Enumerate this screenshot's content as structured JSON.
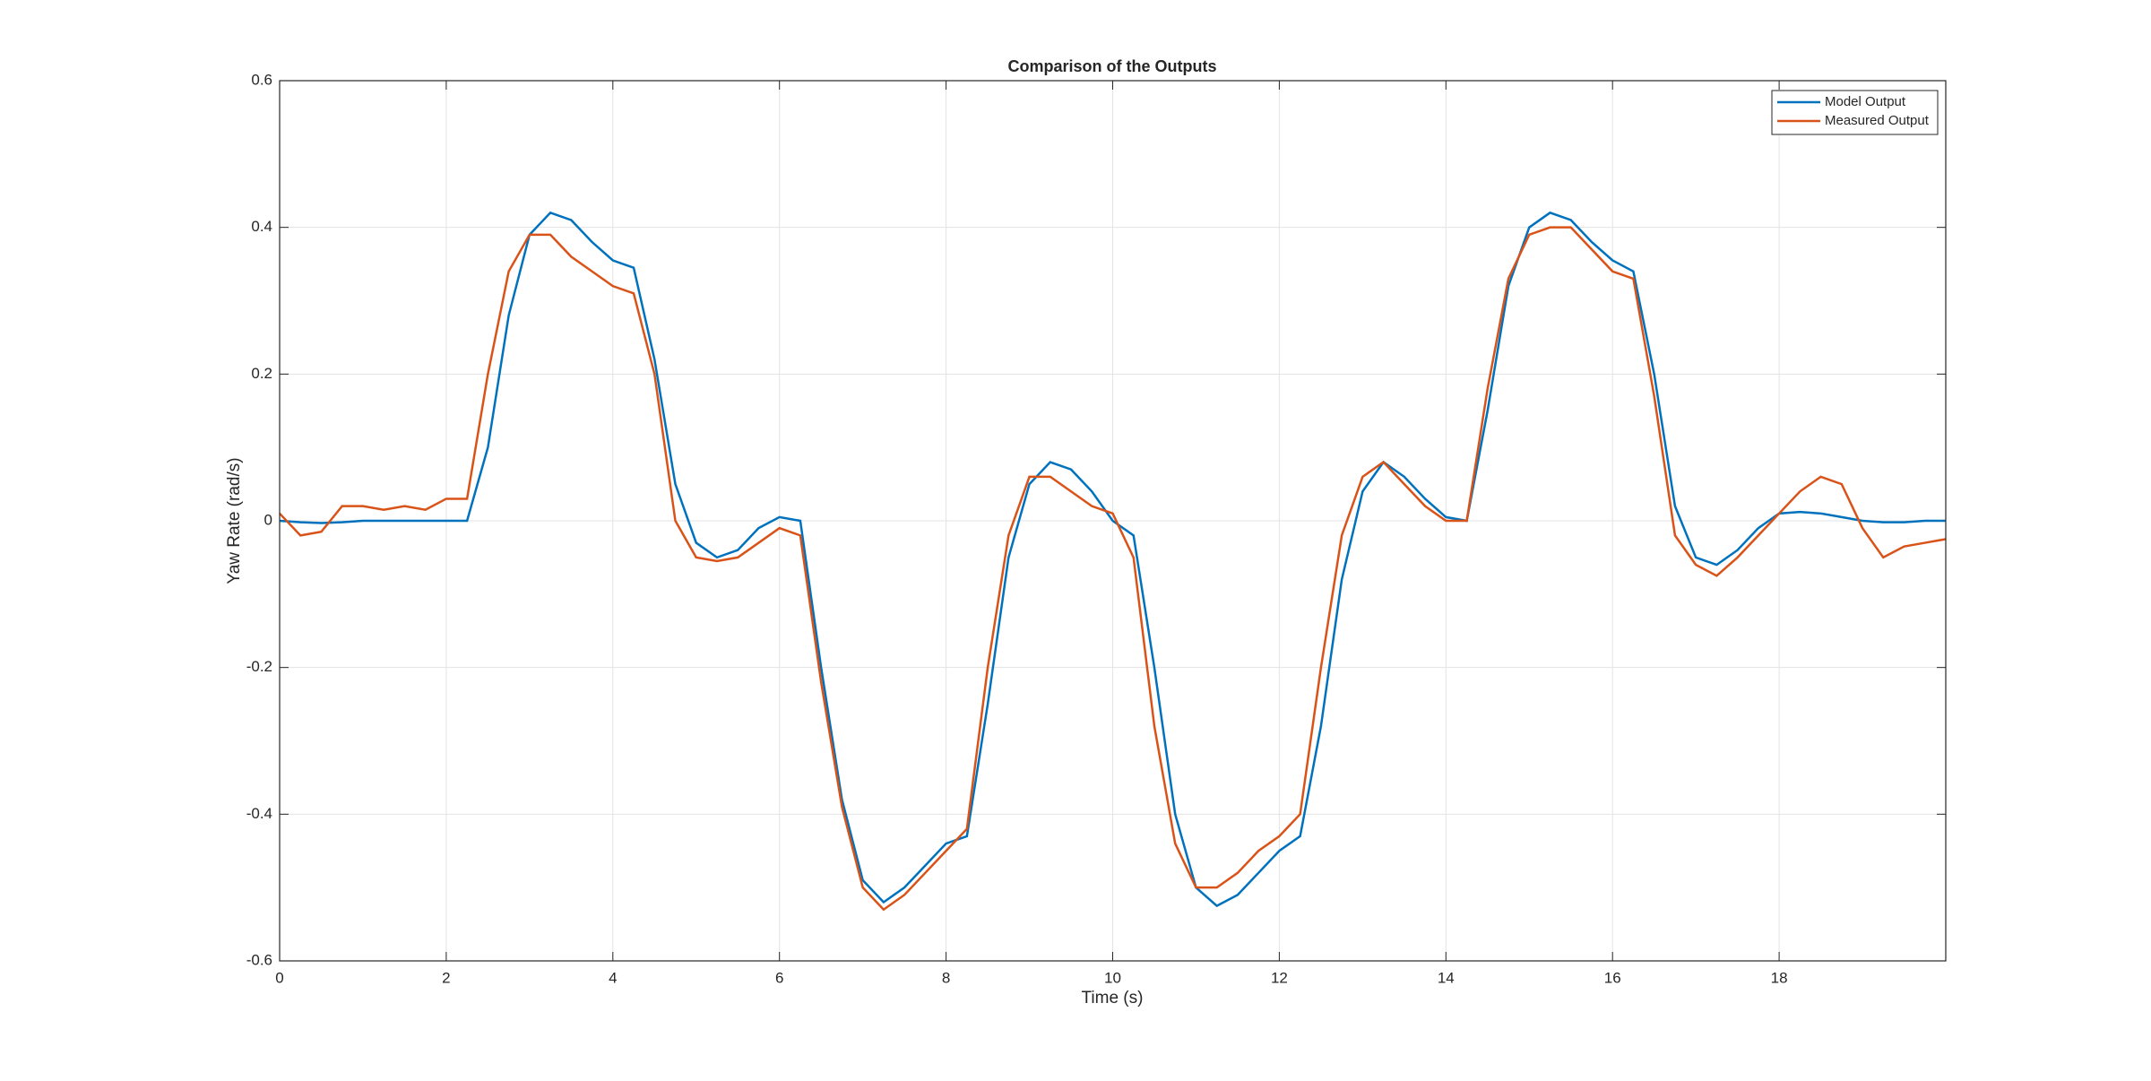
{
  "chart_data": {
    "type": "line",
    "title": "Comparison of the Outputs",
    "x_label": "Time (s)",
    "y_label": "Yaw Rate (rad/s)",
    "x": [
      0,
      0.25,
      0.5,
      0.75,
      1,
      1.25,
      1.5,
      1.75,
      2,
      2.25,
      2.5,
      2.75,
      3,
      3.25,
      3.5,
      3.75,
      4,
      4.25,
      4.5,
      4.75,
      5,
      5.25,
      5.5,
      5.75,
      6,
      6.25,
      6.5,
      6.75,
      7,
      7.25,
      7.5,
      7.75,
      8,
      8.25,
      8.5,
      8.75,
      9,
      9.25,
      9.5,
      9.75,
      10,
      10.25,
      10.5,
      10.75,
      11,
      11.25,
      11.5,
      11.75,
      12,
      12.25,
      12.5,
      12.75,
      13,
      13.25,
      13.5,
      13.75,
      14,
      14.25,
      14.5,
      14.75,
      15,
      15.25,
      15.5,
      15.75,
      16,
      16.25,
      16.5,
      16.75,
      17,
      17.25,
      17.5,
      17.75,
      18,
      18.25,
      18.5,
      18.75,
      19,
      19.25,
      19.5,
      19.75,
      20
    ],
    "series": [
      {
        "name": "Model Output",
        "color": "#0072bd",
        "values": [
          0,
          -0.002,
          -0.003,
          -0.002,
          0,
          0,
          0,
          0,
          0,
          0,
          0.1,
          0.28,
          0.39,
          0.42,
          0.41,
          0.38,
          0.355,
          0.345,
          0.22,
          0.05,
          -0.03,
          -0.05,
          -0.04,
          -0.01,
          0.005,
          0,
          -0.2,
          -0.38,
          -0.49,
          -0.52,
          -0.5,
          -0.47,
          -0.44,
          -0.43,
          -0.25,
          -0.05,
          0.05,
          0.08,
          0.07,
          0.04,
          0,
          -0.02,
          -0.2,
          -0.4,
          -0.5,
          -0.525,
          -0.51,
          -0.48,
          -0.45,
          -0.43,
          -0.28,
          -0.08,
          0.04,
          0.08,
          0.06,
          0.03,
          0.005,
          0,
          0.15,
          0.32,
          0.4,
          0.42,
          0.41,
          0.38,
          0.355,
          0.34,
          0.2,
          0.02,
          -0.05,
          -0.06,
          -0.04,
          -0.01,
          0.01,
          0.012,
          0.01,
          0.005,
          0,
          -0.002,
          -0.002,
          0,
          0
        ]
      },
      {
        "name": "Measured Output",
        "color": "#d95319",
        "values": [
          0.01,
          -0.02,
          -0.015,
          0.02,
          0.02,
          0.015,
          0.02,
          0.015,
          0.03,
          0.03,
          0.2,
          0.34,
          0.39,
          0.39,
          0.36,
          0.34,
          0.32,
          0.31,
          0.2,
          0,
          -0.05,
          -0.055,
          -0.05,
          -0.03,
          -0.01,
          -0.02,
          -0.22,
          -0.39,
          -0.5,
          -0.53,
          -0.51,
          -0.48,
          -0.45,
          -0.42,
          -0.2,
          -0.02,
          0.06,
          0.06,
          0.04,
          0.02,
          0.01,
          -0.05,
          -0.28,
          -0.44,
          -0.5,
          -0.5,
          -0.48,
          -0.45,
          -0.43,
          -0.4,
          -0.2,
          -0.02,
          0.06,
          0.08,
          0.05,
          0.02,
          0,
          0,
          0.18,
          0.33,
          0.39,
          0.4,
          0.4,
          0.37,
          0.34,
          0.33,
          0.17,
          -0.02,
          -0.06,
          -0.075,
          -0.05,
          -0.02,
          0.01,
          0.04,
          0.06,
          0.05,
          -0.01,
          -0.05,
          -0.035,
          -0.03,
          -0.025
        ]
      }
    ],
    "xlim": [
      0,
      20
    ],
    "ylim": [
      -0.6,
      0.6
    ],
    "xticks": [
      0,
      2,
      4,
      6,
      8,
      10,
      12,
      14,
      16,
      18
    ],
    "yticks": [
      -0.6,
      -0.4,
      -0.2,
      0,
      0.2,
      0.4,
      0.6
    ],
    "grid": true,
    "legend": "top-right"
  }
}
